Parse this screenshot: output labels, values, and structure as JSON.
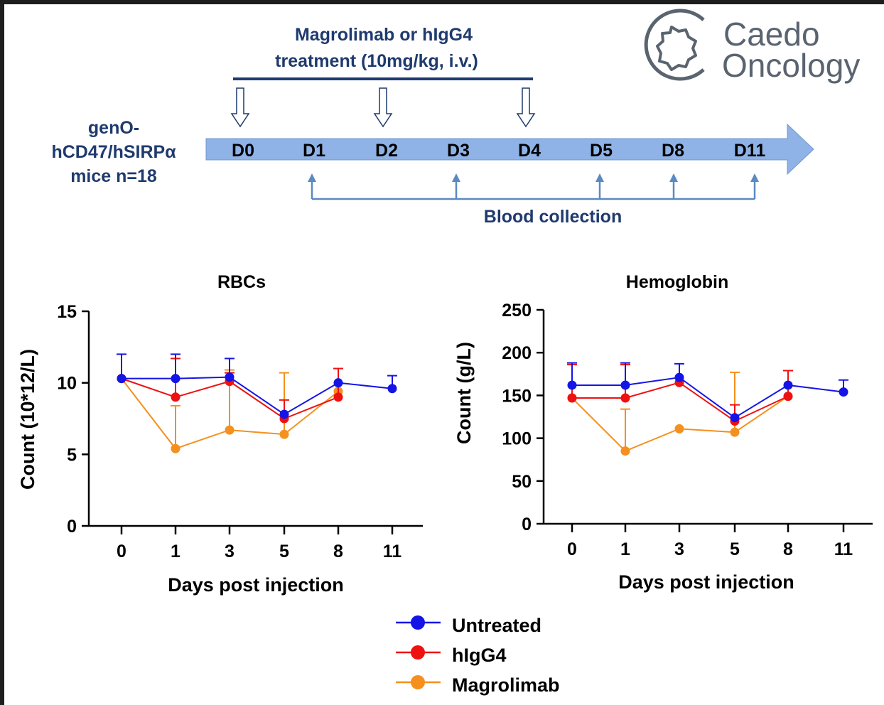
{
  "brand": {
    "logo_line1": "Caedo",
    "logo_line2": "Oncology"
  },
  "timeline": {
    "treatment_label_line1": "Magrolimab or hIgG4",
    "treatment_label_line2": "treatment (10mg/kg, i.v.)",
    "mice_label_line1": "genO-",
    "mice_label_line2": "hCD47/hSIRPα",
    "mice_label_line3": "mice n=18",
    "days": [
      "D0",
      "D1",
      "D2",
      "D3",
      "D4",
      "D5",
      "D8",
      "D11"
    ],
    "treatment_days": [
      "D0",
      "D2",
      "D4"
    ],
    "blood_collection_days": [
      "D1",
      "D3",
      "D5",
      "D8",
      "D11"
    ],
    "blood_collection_label": "Blood collection",
    "colors": {
      "navy": "#1f3a6e",
      "arrow_fill": "#8fb3e6",
      "bracket": "#5b8ac2"
    }
  },
  "legend": {
    "entries": [
      {
        "label": "Untreated",
        "color": "#1414e6"
      },
      {
        "label": "hIgG4",
        "color": "#ee1111"
      },
      {
        "label": "Magrolimab",
        "color": "#f5901e"
      }
    ]
  },
  "chart_data": [
    {
      "type": "line",
      "title": "RBCs",
      "xlabel": "Days post injection",
      "ylabel": "Count (10*12/L)",
      "categories": [
        "0",
        "1",
        "3",
        "5",
        "8",
        "11"
      ],
      "ylim": [
        0,
        15
      ],
      "yticks": [
        0,
        5,
        10,
        15
      ],
      "series": [
        {
          "name": "Untreated",
          "color": "#1414e6",
          "values": [
            10.3,
            10.3,
            10.4,
            7.8,
            10.0,
            9.6
          ],
          "err": [
            1.7,
            1.7,
            1.3,
            0.0,
            0.0,
            0.9
          ]
        },
        {
          "name": "hIgG4",
          "color": "#ee1111",
          "values": [
            10.3,
            9.0,
            10.1,
            7.5,
            9.0,
            null
          ],
          "err": [
            0.0,
            2.7,
            0.6,
            1.3,
            2.0,
            null
          ]
        },
        {
          "name": "Magrolimab",
          "color": "#f5901e",
          "values": [
            10.3,
            5.4,
            6.7,
            6.4,
            9.4,
            null
          ],
          "err": [
            0.0,
            3.0,
            4.2,
            4.3,
            0.0,
            null
          ]
        }
      ]
    },
    {
      "type": "line",
      "title": "Hemoglobin",
      "xlabel": "Days post injection",
      "ylabel": "Count (g/L)",
      "categories": [
        "0",
        "1",
        "3",
        "5",
        "8",
        "11"
      ],
      "ylim": [
        0,
        250
      ],
      "yticks": [
        0,
        50,
        100,
        150,
        200,
        250
      ],
      "series": [
        {
          "name": "Untreated",
          "color": "#1414e6",
          "values": [
            162,
            162,
            171,
            124,
            162,
            154
          ],
          "err": [
            26,
            26,
            16,
            0,
            0,
            14
          ]
        },
        {
          "name": "hIgG4",
          "color": "#ee1111",
          "values": [
            147,
            147,
            165,
            120,
            149,
            null
          ],
          "err": [
            39,
            39,
            0,
            19,
            30,
            null
          ]
        },
        {
          "name": "Magrolimab",
          "color": "#f5901e",
          "values": [
            147,
            85,
            111,
            107,
            149,
            null
          ],
          "err": [
            0,
            49,
            0,
            70,
            0,
            null
          ]
        }
      ]
    }
  ]
}
